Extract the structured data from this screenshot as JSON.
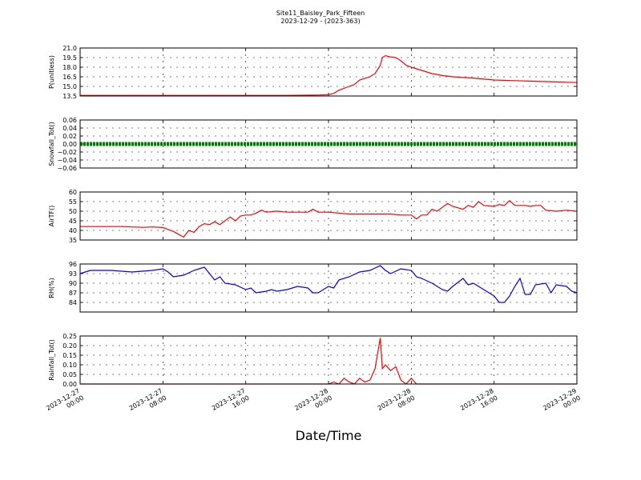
{
  "chart_data": {
    "type": "line",
    "title": "Site11_Baisley_Park_Fifteen",
    "subtitle": "2023-12-29 - (2023-363)",
    "xlabel": "Date/Time",
    "x_ticks": [
      "2023-12-27\n00:00",
      "2023-12-27\n08:00",
      "2023-12-27\n16:00",
      "2023-12-28\n00:00",
      "2023-12-28\n08:00",
      "2023-12-28\n16:00",
      "2023-12-29\n00:00"
    ],
    "grid": true,
    "panels": [
      {
        "ylabel": "P(unitless)",
        "ylim": [
          13.5,
          21.0
        ],
        "yticks": [
          "13.5",
          "15.0",
          "16.5",
          "18.0",
          "19.5",
          "21.0"
        ],
        "series": [
          {
            "color": "#ff0000",
            "style": "line",
            "points": [
              [
                0,
                13.6
              ],
              [
                4,
                13.6
              ],
              [
                8,
                13.6
              ],
              [
                12,
                13.6
              ],
              [
                16,
                13.6
              ],
              [
                20,
                13.6
              ],
              [
                23,
                13.65
              ],
              [
                24,
                13.7
              ],
              [
                24.5,
                13.9
              ],
              [
                25,
                14.4
              ],
              [
                26,
                15.0
              ],
              [
                26.5,
                15.3
              ],
              [
                27,
                16.0
              ],
              [
                28,
                16.5
              ],
              [
                28.5,
                17.0
              ],
              [
                29,
                18.3
              ],
              [
                29.2,
                19.5
              ],
              [
                29.5,
                19.8
              ],
              [
                30,
                19.6
              ],
              [
                30.5,
                19.5
              ],
              [
                31,
                19.0
              ],
              [
                31.5,
                18.3
              ],
              [
                32,
                18.0
              ],
              [
                33,
                17.5
              ],
              [
                34,
                17.0
              ],
              [
                35,
                16.7
              ],
              [
                36,
                16.5
              ],
              [
                38,
                16.3
              ],
              [
                40,
                16.0
              ],
              [
                42,
                15.9
              ],
              [
                44,
                15.8
              ],
              [
                46,
                15.7
              ],
              [
                48,
                15.6
              ]
            ]
          }
        ]
      },
      {
        "ylabel": "Snowfall_Tot()",
        "ylim": [
          -0.06,
          0.06
        ],
        "yticks": [
          "−0.06",
          "−0.04",
          "−0.02",
          "0.00",
          "0.02",
          "0.04",
          "0.06"
        ],
        "series": [
          {
            "color": "#008000",
            "style": "thick",
            "points": [
              [
                0,
                0
              ],
              [
                48,
                0
              ]
            ]
          }
        ]
      },
      {
        "ylabel": "AirTF()",
        "ylim": [
          35,
          60
        ],
        "yticks": [
          "35",
          "40",
          "45",
          "50",
          "55",
          "60"
        ],
        "series": [
          {
            "color": "#ff0000",
            "style": "line",
            "points": [
              [
                0,
                42
              ],
              [
                2,
                42
              ],
              [
                4,
                42
              ],
              [
                6,
                41.6
              ],
              [
                7,
                41.8
              ],
              [
                8,
                41.5
              ],
              [
                8.5,
                40.5
              ],
              [
                9,
                39.5
              ],
              [
                9.5,
                38
              ],
              [
                10,
                36.5
              ],
              [
                10.5,
                40
              ],
              [
                11,
                39
              ],
              [
                11.5,
                42
              ],
              [
                12,
                43.5
              ],
              [
                12.5,
                43
              ],
              [
                13,
                44.5
              ],
              [
                13.5,
                43
              ],
              [
                14,
                45
              ],
              [
                14.5,
                47
              ],
              [
                15,
                45
              ],
              [
                15.5,
                47.5
              ],
              [
                16,
                48
              ],
              [
                16.5,
                48
              ],
              [
                17,
                49
              ],
              [
                17.5,
                50.5
              ],
              [
                18,
                49.5
              ],
              [
                19,
                50
              ],
              [
                20,
                49.5
              ],
              [
                22,
                49.5
              ],
              [
                22.5,
                51
              ],
              [
                23,
                49.5
              ],
              [
                24,
                49.5
              ],
              [
                26,
                48.5
              ],
              [
                28,
                48.5
              ],
              [
                30,
                48.5
              ],
              [
                31,
                48
              ],
              [
                32,
                48
              ],
              [
                32.5,
                46
              ],
              [
                33,
                48
              ],
              [
                33.5,
                48
              ],
              [
                34,
                51
              ],
              [
                34.5,
                50
              ],
              [
                35,
                52
              ],
              [
                35.5,
                54
              ],
              [
                36,
                52.5
              ],
              [
                37,
                51
              ],
              [
                37.5,
                53
              ],
              [
                38,
                52
              ],
              [
                38.5,
                55
              ],
              [
                39,
                53
              ],
              [
                40,
                52.5
              ],
              [
                40.5,
                53.5
              ],
              [
                41,
                53
              ],
              [
                41.5,
                55.5
              ],
              [
                42,
                53
              ],
              [
                43,
                53
              ],
              [
                43.5,
                52.5
              ],
              [
                44,
                53
              ],
              [
                44.5,
                53
              ],
              [
                45,
                50.5
              ],
              [
                46,
                50
              ],
              [
                47,
                50.5
              ],
              [
                48,
                50
              ]
            ]
          }
        ]
      },
      {
        "ylabel": "RH(%)",
        "ylim": [
          81,
          96
        ],
        "yticks": [
          "84",
          "87",
          "90",
          "93",
          "96"
        ],
        "series": [
          {
            "color": "#0000ff",
            "style": "line",
            "points": [
              [
                0,
                93
              ],
              [
                1,
                94
              ],
              [
                3,
                94
              ],
              [
                5,
                93.5
              ],
              [
                7,
                94
              ],
              [
                8,
                94.5
              ],
              [
                8.5,
                93.5
              ],
              [
                9,
                92
              ],
              [
                10,
                92.5
              ],
              [
                11,
                94
              ],
              [
                11.5,
                94.5
              ],
              [
                12,
                95
              ],
              [
                12.5,
                93
              ],
              [
                13,
                91
              ],
              [
                13.5,
                92
              ],
              [
                14,
                90
              ],
              [
                15,
                89.5
              ],
              [
                16,
                88
              ],
              [
                16.5,
                88.5
              ],
              [
                17,
                87
              ],
              [
                18,
                87.5
              ],
              [
                18.5,
                88
              ],
              [
                19,
                87.5
              ],
              [
                20,
                88
              ],
              [
                21,
                89
              ],
              [
                22,
                88.5
              ],
              [
                22.5,
                87
              ],
              [
                23,
                87
              ],
              [
                24,
                89
              ],
              [
                24.5,
                88.5
              ],
              [
                25,
                91
              ],
              [
                26,
                92
              ],
              [
                27,
                93.5
              ],
              [
                28,
                94
              ],
              [
                29,
                95.5
              ],
              [
                29.5,
                94
              ],
              [
                30,
                93
              ],
              [
                31,
                94.5
              ],
              [
                32,
                94
              ],
              [
                32.5,
                92
              ],
              [
                33,
                91.5
              ],
              [
                34,
                90
              ],
              [
                35,
                88
              ],
              [
                35.5,
                87.5
              ],
              [
                36,
                89
              ],
              [
                37,
                91.5
              ],
              [
                37.5,
                89.5
              ],
              [
                38,
                90
              ],
              [
                39,
                88
              ],
              [
                40,
                86
              ],
              [
                40.5,
                84
              ],
              [
                41,
                84
              ],
              [
                41.5,
                86
              ],
              [
                42,
                89
              ],
              [
                42.5,
                91.5
              ],
              [
                43,
                86.5
              ],
              [
                43.5,
                86.5
              ],
              [
                44,
                89.5
              ],
              [
                45,
                90
              ],
              [
                45.5,
                87
              ],
              [
                46,
                89.5
              ],
              [
                47,
                89
              ],
              [
                47.5,
                87.5
              ],
              [
                48,
                87
              ]
            ]
          }
        ]
      },
      {
        "ylabel": "Rainfall_Tot()",
        "ylim": [
          0,
          0.25
        ],
        "yticks": [
          "0.00",
          "0.05",
          "0.10",
          "0.15",
          "0.20",
          "0.25"
        ],
        "series": [
          {
            "color": "#ff0000",
            "style": "line",
            "points": [
              [
                0,
                0
              ],
              [
                24,
                0
              ],
              [
                24.5,
                0.01
              ],
              [
                25,
                0
              ],
              [
                25.5,
                0.03
              ],
              [
                26,
                0.01
              ],
              [
                26.5,
                0
              ],
              [
                27,
                0.03
              ],
              [
                27.5,
                0.01
              ],
              [
                28,
                0.02
              ],
              [
                28.5,
                0.08
              ],
              [
                29,
                0.24
              ],
              [
                29.2,
                0.08
              ],
              [
                29.5,
                0.1
              ],
              [
                30,
                0.07
              ],
              [
                30.5,
                0.09
              ],
              [
                31,
                0.02
              ],
              [
                31.5,
                0
              ],
              [
                32,
                0.03
              ],
              [
                32.5,
                0
              ],
              [
                33,
                0
              ],
              [
                48,
                0
              ]
            ]
          }
        ]
      }
    ]
  }
}
